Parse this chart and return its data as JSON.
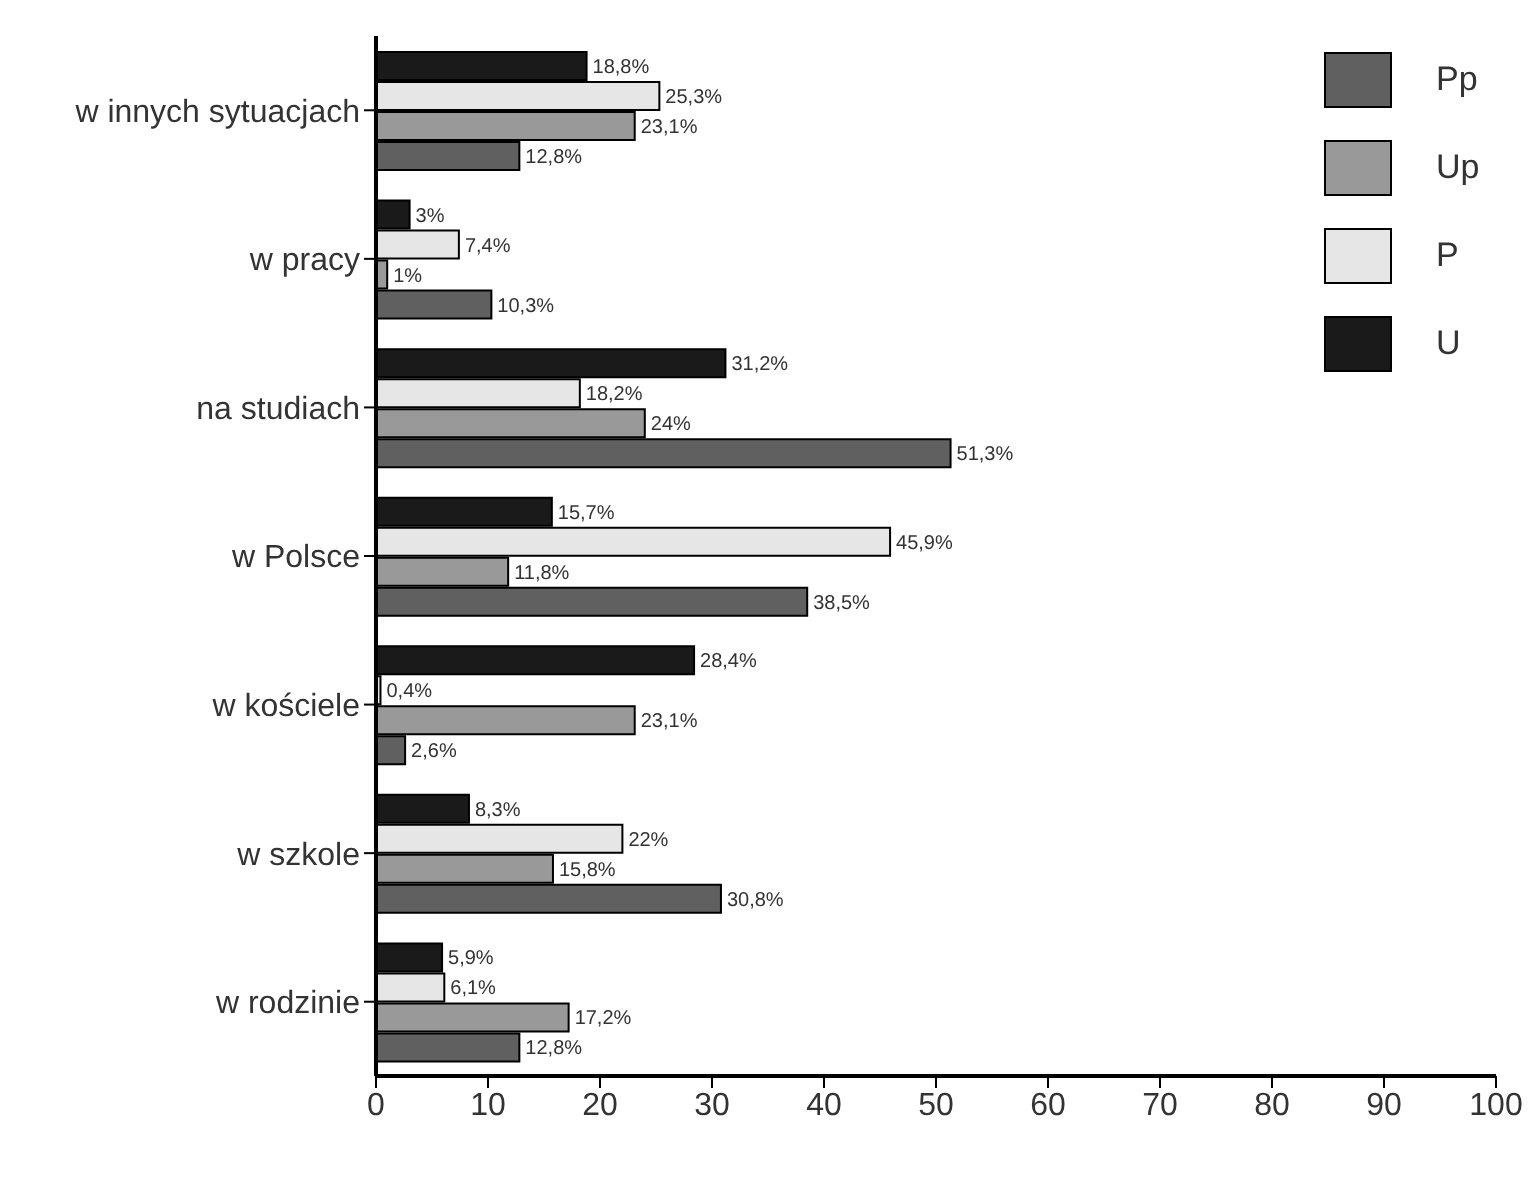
{
  "chart_data": {
    "type": "bar",
    "orientation": "horizontal",
    "categories": [
      "w innych sytuacjach",
      "w pracy",
      "na studiach",
      "w Polsce",
      "w kościele",
      "w szkole",
      "w rodzinie"
    ],
    "series": [
      {
        "name": "U",
        "color": "#1a1a1a",
        "values": [
          18.8,
          3,
          31.2,
          15.7,
          28.4,
          8.3,
          5.9
        ],
        "value_labels": [
          "18,8%",
          "3%",
          "31,2%",
          "15,7%",
          "28,4%",
          "8,3%",
          "5,9%"
        ]
      },
      {
        "name": "P",
        "color": "#e6e6e6",
        "values": [
          25.3,
          7.4,
          18.2,
          45.9,
          0.4,
          22,
          6.1
        ],
        "value_labels": [
          "25,3%",
          "7,4%",
          "18,2%",
          "45,9%",
          "0,4%",
          "22%",
          "6,1%"
        ]
      },
      {
        "name": "Up",
        "color": "#999999",
        "values": [
          23.1,
          1,
          24,
          11.8,
          23.1,
          15.8,
          17.2
        ],
        "value_labels": [
          "23,1%",
          "1%",
          "24%",
          "11,8%",
          "23,1%",
          "15,8%",
          "17,2%"
        ]
      },
      {
        "name": "Pp",
        "color": "#606060",
        "values": [
          12.8,
          10.3,
          51.3,
          38.5,
          2.6,
          30.8,
          12.8
        ],
        "value_labels": [
          "12,8%",
          "10,3%",
          "51,3%",
          "38,5%",
          "2,6%",
          "30,8%",
          "12,8%"
        ]
      }
    ],
    "xlim": [
      0,
      100
    ],
    "xticks": [
      0,
      10,
      20,
      30,
      40,
      50,
      60,
      70,
      80,
      90,
      100
    ],
    "grid": false,
    "legend": "top right"
  }
}
